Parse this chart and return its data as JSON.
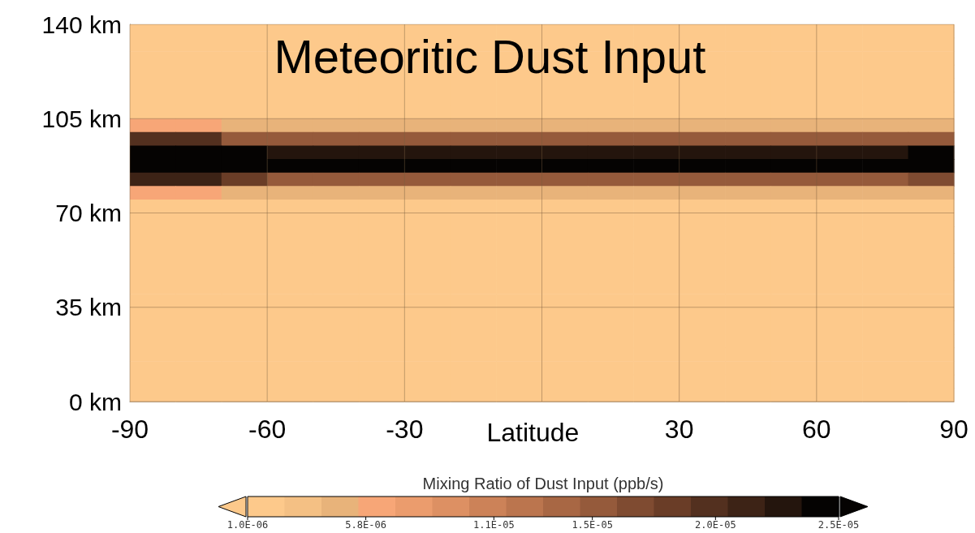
{
  "chart_data": {
    "type": "heatmap",
    "title": "Meteoritic Dust Input",
    "xlabel": "Latitude",
    "clabel": "Mixing Ratio of Dust Input (ppb/s)",
    "x": [
      -85,
      -75,
      -65,
      -55,
      -45,
      -35,
      -25,
      -15,
      -5,
      5,
      15,
      25,
      35,
      45,
      55,
      65,
      75,
      85
    ],
    "cells": [
      [
        1e-06,
        1e-06,
        1e-06,
        1e-06,
        1e-06,
        1e-06,
        1e-06,
        1e-06,
        1e-06,
        1e-06,
        1e-06,
        1e-06,
        1e-06,
        1e-06,
        1e-06,
        1e-06,
        1e-06,
        1e-06
      ],
      [
        1e-06,
        1e-06,
        1e-06,
        1e-06,
        1e-06,
        1e-06,
        1e-06,
        1e-06,
        1e-06,
        1e-06,
        1e-06,
        1e-06,
        1e-06,
        1e-06,
        1e-06,
        1e-06,
        1e-06,
        1e-06
      ],
      [
        1e-06,
        1e-06,
        1e-06,
        1e-06,
        1e-06,
        1e-06,
        1e-06,
        1e-06,
        1e-06,
        1e-06,
        1e-06,
        1e-06,
        1e-06,
        1e-06,
        1e-06,
        1e-06,
        1e-06,
        1e-06
      ],
      [
        1e-06,
        1e-06,
        1e-06,
        1e-06,
        1e-06,
        1e-06,
        1e-06,
        1e-06,
        1e-06,
        1e-06,
        1e-06,
        1e-06,
        1e-06,
        1e-06,
        1e-06,
        1e-06,
        1e-06,
        1e-06
      ],
      [
        1e-06,
        1e-06,
        1e-06,
        1e-06,
        1e-06,
        1e-06,
        1e-06,
        1e-06,
        1e-06,
        1e-06,
        1e-06,
        1e-06,
        1e-06,
        1e-06,
        1e-06,
        1e-06,
        1e-06,
        1e-06
      ],
      [
        1e-06,
        1e-06,
        1e-06,
        1e-06,
        1e-06,
        1e-06,
        1e-06,
        1e-06,
        1e-06,
        1e-06,
        1e-06,
        1e-06,
        1e-06,
        1e-06,
        1e-06,
        1e-06,
        1e-06,
        1e-06
      ],
      [
        1e-06,
        1e-06,
        1e-06,
        1e-06,
        1e-06,
        1e-06,
        1e-06,
        1e-06,
        1e-06,
        1e-06,
        1e-06,
        1e-06,
        1e-06,
        1e-06,
        1e-06,
        1e-06,
        1e-06,
        1e-06
      ],
      [
        6e-06,
        6e-06,
        5e-06,
        5e-06,
        5e-06,
        5e-06,
        5e-06,
        5e-06,
        5e-06,
        5e-06,
        5e-06,
        5e-06,
        5e-06,
        5e-06,
        5e-06,
        5e-06,
        5e-06,
        5e-06
      ],
      [
        2e-05,
        1.9e-05,
        1.6e-05,
        1.5e-05,
        1.5e-05,
        1.5e-05,
        1.5e-05,
        1.5e-05,
        1.5e-05,
        1.5e-05,
        1.5e-05,
        1.5e-05,
        1.5e-05,
        1.5e-05,
        1.5e-05,
        1.5e-05,
        1.5e-05,
        1.6e-05
      ],
      [
        2.5e-05,
        2.5e-05,
        2.4e-05,
        2.3e-05,
        2.3e-05,
        2.3e-05,
        2.3e-05,
        2.3e-05,
        2.3e-05,
        2.3e-05,
        2.3e-05,
        2.3e-05,
        2.3e-05,
        2.3e-05,
        2.3e-05,
        2.3e-05,
        2.3e-05,
        2.4e-05
      ],
      [
        2.5e-05,
        2.5e-05,
        2.5e-05,
        2.5e-05,
        2.5e-05,
        2.5e-05,
        2.5e-05,
        2.5e-05,
        2.5e-05,
        2.5e-05,
        2.5e-05,
        2.5e-05,
        2.5e-05,
        2.5e-05,
        2.5e-05,
        2.5e-05,
        2.5e-05,
        2.5e-05
      ],
      [
        2.2e-05,
        2.1e-05,
        1.8e-05,
        1.6e-05,
        1.6e-05,
        1.6e-05,
        1.6e-05,
        1.6e-05,
        1.6e-05,
        1.6e-05,
        1.6e-05,
        1.6e-05,
        1.6e-05,
        1.6e-05,
        1.6e-05,
        1.6e-05,
        1.6e-05,
        1.7e-05
      ],
      [
        6e-06,
        6e-06,
        5e-06,
        5e-06,
        5e-06,
        5e-06,
        5e-06,
        5e-06,
        5e-06,
        5e-06,
        5e-06,
        5e-06,
        5e-06,
        5e-06,
        5e-06,
        5e-06,
        5e-06,
        5e-06
      ],
      [
        1e-06,
        1e-06,
        1e-06,
        1e-06,
        1e-06,
        1e-06,
        1e-06,
        1e-06,
        1e-06,
        1e-06,
        1e-06,
        1e-06,
        1e-06,
        1e-06,
        1e-06,
        1e-06,
        1e-06,
        1e-06
      ],
      [
        1e-06,
        1e-06,
        1e-06,
        1e-06,
        1e-06,
        1e-06,
        1e-06,
        1e-06,
        1e-06,
        1e-06,
        1e-06,
        1e-06,
        1e-06,
        1e-06,
        1e-06,
        1e-06,
        1e-06,
        1e-06
      ],
      [
        1e-06,
        1e-06,
        1e-06,
        1e-06,
        1e-06,
        1e-06,
        1e-06,
        1e-06,
        1e-06,
        1e-06,
        1e-06,
        1e-06,
        1e-06,
        1e-06,
        1e-06,
        1e-06,
        1e-06,
        1e-06
      ],
      [
        1e-06,
        1e-06,
        1e-06,
        1e-06,
        1e-06,
        1e-06,
        1e-06,
        1e-06,
        1e-06,
        1e-06,
        1e-06,
        1e-06,
        1e-06,
        1e-06,
        1e-06,
        1e-06,
        1e-06,
        1e-06
      ],
      [
        1e-06,
        1e-06,
        1e-06,
        1e-06,
        1e-06,
        1e-06,
        1e-06,
        1e-06,
        1e-06,
        1e-06,
        1e-06,
        1e-06,
        1e-06,
        1e-06,
        1e-06,
        1e-06,
        1e-06,
        1e-06
      ],
      [
        1e-06,
        1e-06,
        1e-06,
        1e-06,
        1e-06,
        1e-06,
        1e-06,
        1e-06,
        1e-06,
        1e-06,
        1e-06,
        1e-06,
        1e-06,
        1e-06,
        1e-06,
        1e-06,
        1e-06,
        1e-06
      ],
      [
        1e-06,
        1e-06,
        1e-06,
        1e-06,
        1e-06,
        1e-06,
        1e-06,
        1e-06,
        1e-06,
        1e-06,
        1e-06,
        1e-06,
        1e-06,
        1e-06,
        1e-06,
        1e-06,
        1e-06,
        1e-06
      ],
      [
        1e-06,
        1e-06,
        1e-06,
        1e-06,
        1e-06,
        1e-06,
        1e-06,
        1e-06,
        1e-06,
        1e-06,
        1e-06,
        1e-06,
        1e-06,
        1e-06,
        1e-06,
        1e-06,
        1e-06,
        1e-06
      ],
      [
        1e-06,
        1e-06,
        1e-06,
        1e-06,
        1e-06,
        1e-06,
        1e-06,
        1e-06,
        1e-06,
        1e-06,
        1e-06,
        1e-06,
        1e-06,
        1e-06,
        1e-06,
        1e-06,
        1e-06,
        1e-06
      ],
      [
        1e-06,
        1e-06,
        1e-06,
        1e-06,
        1e-06,
        1e-06,
        1e-06,
        1e-06,
        1e-06,
        1e-06,
        1e-06,
        1e-06,
        1e-06,
        1e-06,
        1e-06,
        1e-06,
        1e-06,
        1e-06
      ],
      [
        1e-06,
        1e-06,
        1e-06,
        1e-06,
        1e-06,
        1e-06,
        1e-06,
        1e-06,
        1e-06,
        1e-06,
        1e-06,
        1e-06,
        1e-06,
        1e-06,
        1e-06,
        1e-06,
        1e-06,
        1e-06
      ],
      [
        1e-06,
        1e-06,
        1e-06,
        1e-06,
        1e-06,
        1e-06,
        1e-06,
        1e-06,
        1e-06,
        1e-06,
        1e-06,
        1e-06,
        1e-06,
        1e-06,
        1e-06,
        1e-06,
        1e-06,
        1e-06
      ],
      [
        1e-06,
        1e-06,
        1e-06,
        1e-06,
        1e-06,
        1e-06,
        1e-06,
        1e-06,
        1e-06,
        1e-06,
        1e-06,
        1e-06,
        1e-06,
        1e-06,
        1e-06,
        1e-06,
        1e-06,
        1e-06
      ],
      [
        1e-06,
        1e-06,
        1e-06,
        1e-06,
        1e-06,
        1e-06,
        1e-06,
        1e-06,
        1e-06,
        1e-06,
        1e-06,
        1e-06,
        1e-06,
        1e-06,
        1e-06,
        1e-06,
        1e-06,
        1e-06
      ],
      [
        1e-06,
        1e-06,
        1e-06,
        1e-06,
        1e-06,
        1e-06,
        1e-06,
        1e-06,
        1e-06,
        1e-06,
        1e-06,
        1e-06,
        1e-06,
        1e-06,
        1e-06,
        1e-06,
        1e-06,
        1e-06
      ]
    ],
    "xlim": [
      -90,
      90
    ],
    "xticks": [
      -90,
      -60,
      -30,
      {
        "value": 0,
        "label": null
      },
      30,
      60,
      90
    ],
    "ylim": [
      0,
      140
    ],
    "yticks": [
      {
        "value": 0,
        "label": "0 km"
      },
      {
        "value": 35,
        "label": "35 km"
      },
      {
        "value": 70,
        "label": "70 km"
      },
      {
        "value": 105,
        "label": "105 km"
      },
      {
        "value": 140,
        "label": "140 km"
      }
    ],
    "clim": [
      1e-06,
      2.5e-05
    ],
    "cticks": [
      {
        "value": 1e-06,
        "label": "1.0E-06"
      },
      {
        "value": 5.8e-06,
        "label": "5.8E-06"
      },
      {
        "value": 1.1e-05,
        "label": "1.1E-05"
      },
      {
        "value": 1.5e-05,
        "label": "1.5E-05"
      },
      {
        "value": 2e-05,
        "label": "2.0E-05"
      },
      {
        "value": 2.5e-05,
        "label": "2.5E-05"
      }
    ],
    "grid": true
  }
}
